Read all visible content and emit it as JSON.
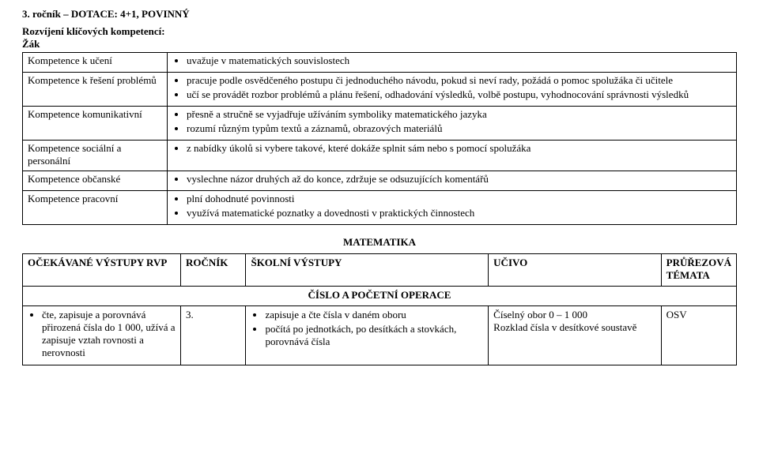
{
  "header": {
    "title": "3. ročník – DOTACE: 4+1, POVINNÝ",
    "subtitle1": "Rozvíjení klíčových kompetencí:",
    "subtitle2": "Žák"
  },
  "competencies": {
    "rows": [
      {
        "label": "Kompetence k učení",
        "items": [
          "uvažuje v matematických souvislostech"
        ]
      },
      {
        "label": "Kompetence k řešení problémů",
        "items": [
          "pracuje podle osvědčeného postupu či jednoduchého návodu, pokud si neví rady, požádá o pomoc spolužáka či učitele",
          "učí se provádět rozbor problémů a plánu řešení, odhadování výsledků, volbě postupu, vyhodnocování správnosti výsledků"
        ]
      },
      {
        "label": "Kompetence komunikativní",
        "items": [
          "přesně a stručně se vyjadřuje užíváním symboliky matematického jazyka",
          "rozumí různým typům textů a záznamů, obrazových materiálů"
        ]
      },
      {
        "label": "Kompetence sociální a personální",
        "items": [
          "z nabídky úkolů si vybere takové, které dokáže splnit sám nebo s pomocí spolužáka"
        ]
      },
      {
        "label": "Kompetence občanské",
        "items": [
          "vyslechne názor druhých až do konce, zdržuje se odsuzujících komentářů"
        ]
      },
      {
        "label": "Kompetence pracovní",
        "items": [
          "plní dohodnuté povinnosti",
          "využívá matematické poznatky a dovednosti v praktických činnostech"
        ]
      }
    ]
  },
  "subject_title": "MATEMATIKA",
  "table2": {
    "headers": {
      "c1": "OČEKÁVANÉ VÝSTUPY RVP",
      "c2": "ROČNÍK",
      "c3": "ŠKOLNÍ VÝSTUPY",
      "c4": "UČIVO",
      "c5": "PRŮŘEZOVÁ TÉMATA"
    },
    "section": "ČÍSLO A POČETNÍ OPERACE",
    "row": {
      "expected": [
        "čte, zapisuje a porovnává přirozená čísla do 1 000, užívá a zapisuje vztah rovnosti a nerovnosti"
      ],
      "grade": "3.",
      "school_outputs": [
        "zapisuje a čte čísla v daném oboru",
        "počítá po jednotkách, po desítkách a stovkách, porovnává čísla"
      ],
      "curriculum": "Číselný obor 0 – 1 000\nRozklad čísla v desítkové soustavě",
      "cross": "OSV"
    }
  }
}
